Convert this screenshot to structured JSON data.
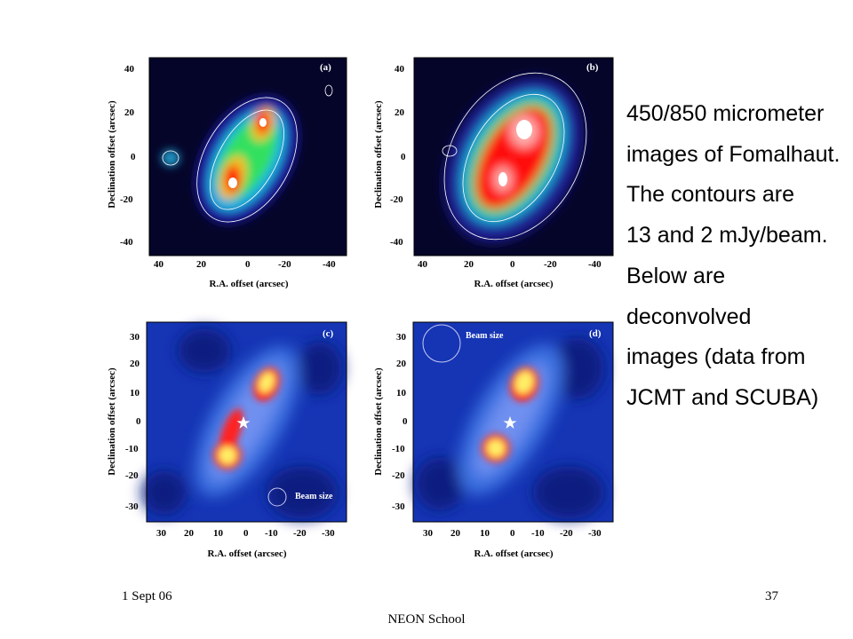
{
  "caption": [
    "450/850 micrometer",
    "images of Fomalhaut.",
    "The contours are",
    "13 and 2 mJy/beam.",
    "Below are",
    "deconvolved",
    "images (data from",
    "JCMT and SCUBA)"
  ],
  "footer": {
    "date": "1 Sept 06",
    "page": "37",
    "school": "NEON School"
  },
  "colors": {
    "background_map": "#05052a",
    "emission_low": "#1010a0",
    "emission_mid": "#22ee44",
    "emission_peak": "#ff1010",
    "core": "#ffffff",
    "deconv_bg": "#1535b5",
    "deconv_peak": "#ffee66"
  },
  "panels": [
    {
      "letter": "(a)",
      "ylabel": "Declination offset (arcsec)",
      "xlabel": "R.A. offset (arcsec)",
      "yticks": [
        "40",
        "20",
        "0",
        "-20",
        "-40"
      ],
      "xticks": [
        "40",
        "20",
        "0",
        "-20",
        "-40"
      ],
      "beam_label": ""
    },
    {
      "letter": "(b)",
      "ylabel": "Declination offset (arcsec)",
      "xlabel": "R.A. offset (arcsec)",
      "yticks": [
        "40",
        "20",
        "0",
        "-20",
        "-40"
      ],
      "xticks": [
        "40",
        "20",
        "0",
        "-20",
        "-40"
      ],
      "beam_label": ""
    },
    {
      "letter": "(c)",
      "ylabel": "Declination offset (arcsec)",
      "xlabel": "R.A. offset (arcsec)",
      "yticks": [
        "30",
        "20",
        "10",
        "0",
        "-10",
        "-20",
        "-30"
      ],
      "xticks": [
        "30",
        "20",
        "10",
        "0",
        "-10",
        "-20",
        "-30"
      ],
      "beam_label": "Beam size"
    },
    {
      "letter": "(d)",
      "ylabel": "Declination offset (arcsec)",
      "xlabel": "R.A. offset (arcsec)",
      "yticks": [
        "30",
        "20",
        "10",
        "0",
        "-10",
        "-20",
        "-30"
      ],
      "xticks": [
        "30",
        "20",
        "10",
        "0",
        "-10",
        "-20",
        "-30"
      ],
      "beam_label": "Beam size"
    }
  ]
}
